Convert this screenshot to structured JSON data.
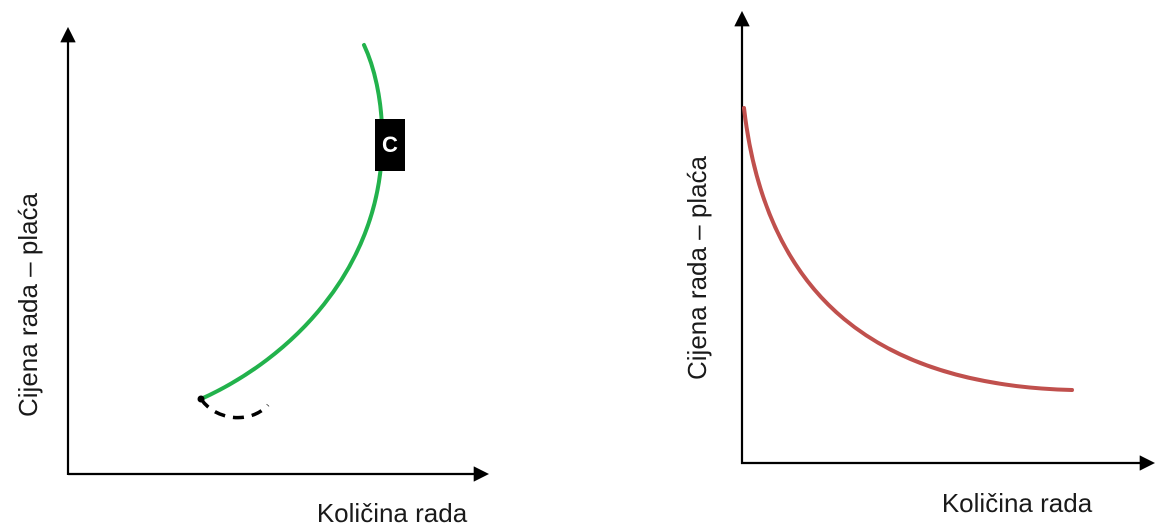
{
  "left_diagram": {
    "ylabel": "Cijena rada – plaća",
    "xlabel": "Količina rada",
    "curve_label": "C",
    "curve_color": "#22b24c",
    "dashed_color": "#000000"
  },
  "right_diagram": {
    "ylabel": "Cijena rada – plaća",
    "xlabel": "Količina rada",
    "curve_color": "#c0504d"
  }
}
